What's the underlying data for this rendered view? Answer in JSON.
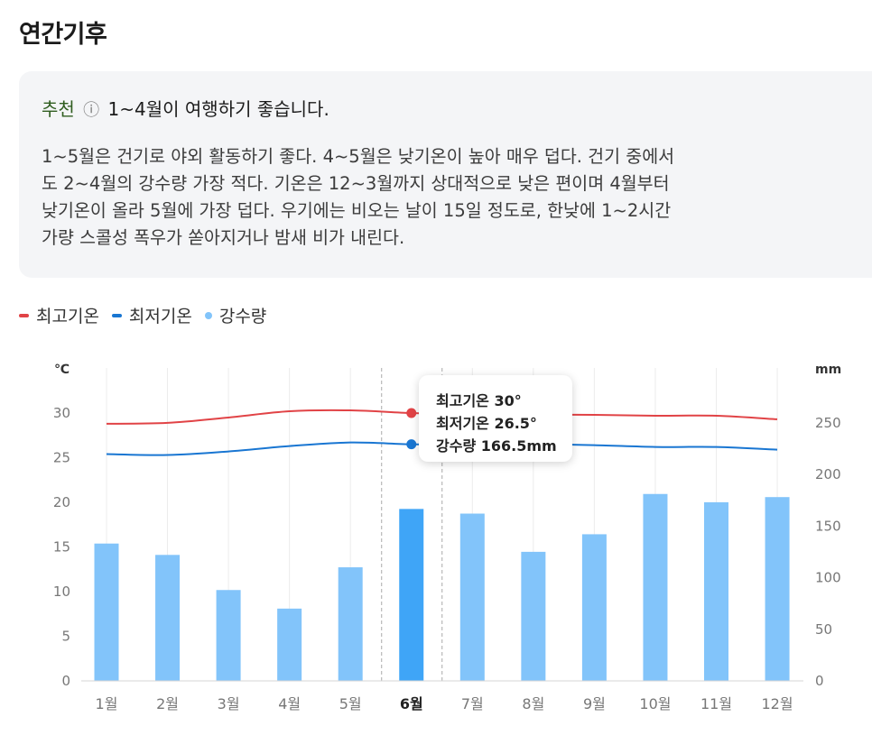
{
  "page_title": "연간기후",
  "summary": {
    "tag": "추천",
    "info_icon": "ⓘ",
    "headline": "1~4월이 여행하기 좋습니다.",
    "lines": [
      "1~5월은 건기로 야외 활동하기 좋다. 4~5월은 낮기온이 높아 매우 덥다. 건기 중에서",
      "도 2~4월의 강수량 가장 적다. 기온은 12~3월까지 상대적으로 낮은 편이며 4월부터",
      "낮기온이 올라 5월에 가장 덥다. 우기에는 비오는 날이 15일 정도로, 한낮에 1~2시간",
      "가량 스콜성 폭우가 쏟아지거나 밤새 비가 내린다."
    ]
  },
  "legend": {
    "high": "최고기온",
    "low": "최저기온",
    "rain": "강수량"
  },
  "tooltip": {
    "high": "최고기온 30°",
    "low": "최저기온 26.5°",
    "rain": "강수량 166.5mm"
  },
  "chart_data": {
    "type": "bar",
    "categories": [
      "1월",
      "2월",
      "3월",
      "4월",
      "5월",
      "6월",
      "7월",
      "8월",
      "9월",
      "10월",
      "11월",
      "12월"
    ],
    "highlight_index": 5,
    "series": [
      {
        "name": "강수량",
        "type": "bar",
        "axis": "right",
        "color": "#82c4fa",
        "highlight_color": "#3fa5f7",
        "values": [
          133,
          122,
          88,
          70,
          110,
          166.5,
          162,
          125,
          142,
          181,
          173,
          178
        ]
      },
      {
        "name": "최고기온",
        "type": "line",
        "axis": "left",
        "color": "#e14346",
        "values": [
          28.8,
          28.9,
          29.5,
          30.2,
          30.3,
          30,
          29.8,
          29.8,
          29.8,
          29.7,
          29.7,
          29.3
        ]
      },
      {
        "name": "최저기온",
        "type": "line",
        "axis": "left",
        "color": "#1976d2",
        "values": [
          25.4,
          25.3,
          25.7,
          26.3,
          26.7,
          26.5,
          26.4,
          26.5,
          26.4,
          26.2,
          26.2,
          25.9
        ]
      }
    ],
    "y_left": {
      "unit": "℃",
      "ticks": [
        0,
        5,
        10,
        15,
        20,
        25,
        30
      ],
      "range": [
        0,
        35
      ]
    },
    "y_right": {
      "unit": "mm",
      "ticks": [
        0,
        50,
        100,
        150,
        200,
        250
      ],
      "range": [
        0,
        300
      ]
    },
    "grid": "vertical"
  }
}
